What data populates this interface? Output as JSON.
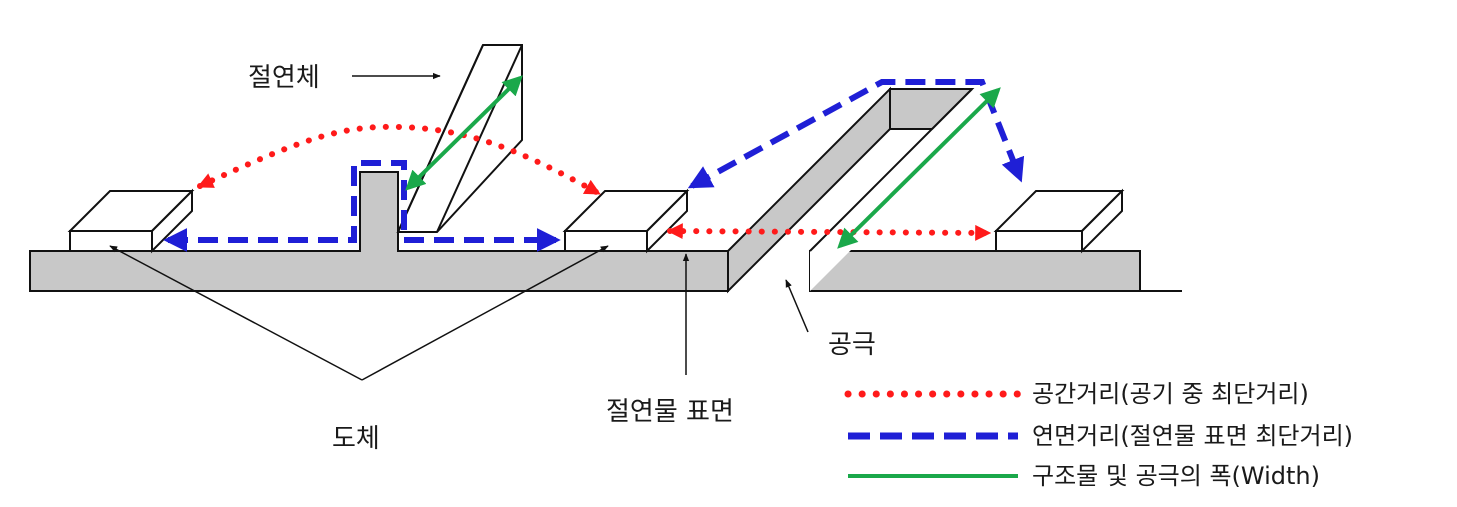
{
  "labels": {
    "insulator": "절연체",
    "gap": "공극",
    "insulator_surface": "절연물 표면",
    "conductor": "도체"
  },
  "legend": {
    "clearance": "공간거리(공기 중 최단거리)",
    "creepage": "연면거리(절연물 표면 최단거리)",
    "width": "구조물 및 공극의 폭(Width)"
  },
  "colors": {
    "clearance": "#ff1a1a",
    "creepage": "#1f1fd6",
    "width": "#1aa84a",
    "substrate": "#c8c8c8",
    "outline": "#111111"
  }
}
